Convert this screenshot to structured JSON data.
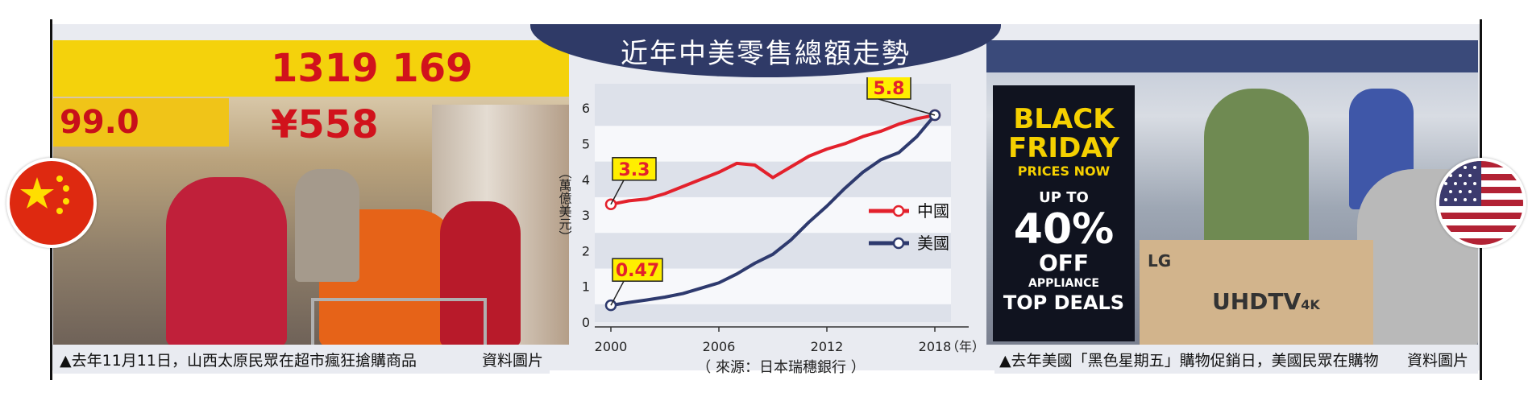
{
  "title": "近年中美零售總額走勢",
  "left_caption": "▲去年11月11日，山西太原民眾在超市瘋狂搶購商品",
  "left_credit": "資料圖片",
  "right_caption": "▲去年美國「黑色星期五」購物促銷日，美國民眾在購物",
  "right_credit": "資料圖片",
  "source": "（ 來源：日本瑞穗銀行 ）",
  "colors": {
    "china": "#e3212c",
    "usa": "#2e3a6e",
    "banner": "#2f3a67",
    "label_bg": "#ffee00"
  },
  "left_photo": {
    "price_sign": "1319 169 ¥558",
    "price_small": "99.0"
  },
  "right_photo": {
    "sign_lines": [
      "BLACK",
      "FRIDAY",
      "PRICES NOW",
      "UP TO",
      "40%",
      "OFF",
      "APPLIANCE",
      "TOP DEALS"
    ],
    "box_brand": "LG",
    "box_text": "UHDTV",
    "box_suffix": "4K"
  },
  "chart_data": {
    "type": "line",
    "x": [
      2000,
      2001,
      2002,
      2003,
      2004,
      2005,
      2006,
      2007,
      2008,
      2009,
      2010,
      2011,
      2012,
      2013,
      2014,
      2015,
      2016,
      2017,
      2018
    ],
    "series": [
      {
        "name": "中國",
        "values": [
          3.3,
          3.4,
          3.45,
          3.6,
          3.8,
          4.0,
          4.2,
          4.45,
          4.4,
          4.05,
          4.35,
          4.65,
          4.85,
          5.0,
          5.2,
          5.35,
          5.55,
          5.7,
          5.8
        ]
      },
      {
        "name": "美國",
        "values": [
          0.47,
          0.55,
          0.62,
          0.7,
          0.8,
          0.95,
          1.1,
          1.35,
          1.65,
          1.9,
          2.3,
          2.8,
          3.25,
          3.75,
          4.2,
          4.55,
          4.75,
          5.2,
          5.8
        ]
      }
    ],
    "ylim": [
      0,
      6.5
    ],
    "yticks": [
      "0",
      "1",
      "2",
      "3",
      "4",
      "5",
      "6"
    ],
    "xticks": [
      "2000",
      "2006",
      "2012",
      "2018"
    ],
    "x_unit": "（年）",
    "ylabel": "（萬億美元）",
    "labels": [
      {
        "text": "3.3",
        "x": 2000,
        "y": 3.3,
        "series": "中國"
      },
      {
        "text": "0.47",
        "x": 2000,
        "y": 0.47,
        "series": "美國"
      },
      {
        "text": "5.8",
        "x": 2018,
        "y": 5.8,
        "series": "中國"
      }
    ]
  }
}
